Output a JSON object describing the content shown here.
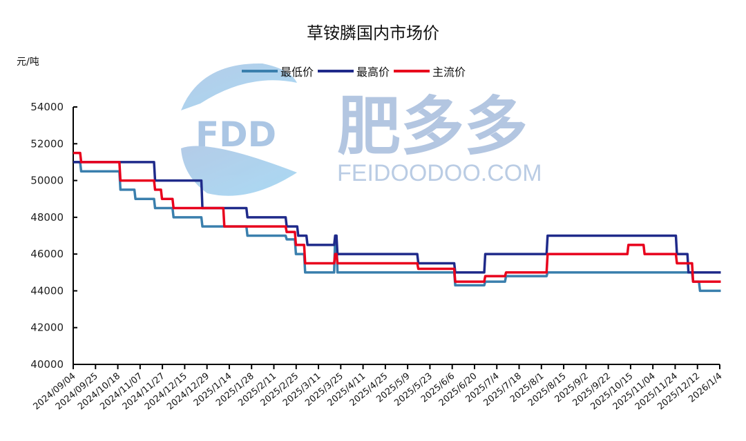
{
  "chart_data": {
    "type": "line",
    "title": "草铵膦国内市场价",
    "ylabel": "元/吨",
    "xlabel": "",
    "ylim": [
      40000,
      54000
    ],
    "yticks": [
      40000,
      42000,
      44000,
      46000,
      48000,
      50000,
      52000,
      54000
    ],
    "grid": false,
    "legend_position": "top",
    "categories": [
      "2024/09/04",
      "2024/09/25",
      "2024/10/18",
      "2024/11/07",
      "2024/11/27",
      "2024/12/15",
      "2024/12/29",
      "2025/1/14",
      "2025/1/28",
      "2025/2/11",
      "2025/2/25",
      "2025/3/11",
      "2025/3/25",
      "2025/4/11",
      "2025/4/25",
      "2025/5/9",
      "2025/5/23",
      "2025/6/6",
      "2025/6/20",
      "2025/7/4",
      "2025/7/18",
      "2025/8/1",
      "2025/8/15",
      "2025/9/2",
      "2025/9/22",
      "2025/10/15",
      "2025/11/04",
      "2025/11/24",
      "2025/12/12",
      "2026/1/4"
    ],
    "series": [
      {
        "name": "最低价",
        "color": "#3a7fad",
        "steps": [
          [
            0,
            51000
          ],
          [
            0.3,
            50500
          ],
          [
            2,
            49500
          ],
          [
            2.65,
            49000
          ],
          [
            3.5,
            48500
          ],
          [
            4.3,
            48000
          ],
          [
            5.55,
            47500
          ],
          [
            7.5,
            47000
          ],
          [
            9.2,
            46800
          ],
          [
            9.6,
            46000
          ],
          [
            10.0,
            45000
          ],
          [
            11.3,
            47000
          ],
          [
            11.4,
            45000
          ],
          [
            16.5,
            44300
          ],
          [
            17.8,
            44500
          ],
          [
            18.7,
            44800
          ],
          [
            20.5,
            45000
          ],
          [
            26.8,
            44500
          ],
          [
            27.1,
            44000
          ],
          [
            28.0,
            44000
          ]
        ]
      },
      {
        "name": "最高价",
        "color": "#1f2a8a",
        "steps": [
          [
            0,
            51000
          ],
          [
            3.5,
            50000
          ],
          [
            5.55,
            48500
          ],
          [
            7.5,
            48000
          ],
          [
            9.2,
            47500
          ],
          [
            9.7,
            47000
          ],
          [
            10.1,
            46500
          ],
          [
            11.3,
            47000
          ],
          [
            11.4,
            46000
          ],
          [
            14.9,
            45500
          ],
          [
            16.5,
            45000
          ],
          [
            17.8,
            46000
          ],
          [
            20.5,
            47000
          ],
          [
            26.1,
            46000
          ],
          [
            26.6,
            45000
          ],
          [
            28.0,
            45000
          ]
        ]
      },
      {
        "name": "主流价",
        "color": "#e8001c",
        "steps": [
          [
            0,
            51500
          ],
          [
            0.3,
            51000
          ],
          [
            2,
            50000
          ],
          [
            3.5,
            49500
          ],
          [
            3.8,
            49000
          ],
          [
            4.3,
            48500
          ],
          [
            6.5,
            47500
          ],
          [
            9.2,
            47200
          ],
          [
            9.6,
            46500
          ],
          [
            10.0,
            45500
          ],
          [
            11.3,
            46000
          ],
          [
            11.4,
            45500
          ],
          [
            14.9,
            45200
          ],
          [
            16.5,
            44500
          ],
          [
            17.8,
            44800
          ],
          [
            18.7,
            45000
          ],
          [
            20.5,
            46000
          ],
          [
            24.0,
            46500
          ],
          [
            24.7,
            46000
          ],
          [
            26.1,
            45500
          ],
          [
            26.8,
            44500
          ],
          [
            28.0,
            44500
          ]
        ]
      }
    ]
  },
  "watermark": {
    "logo_text": "FDD",
    "brand_cn": "肥多多",
    "brand_en": "FEIDOODOO.COM"
  }
}
